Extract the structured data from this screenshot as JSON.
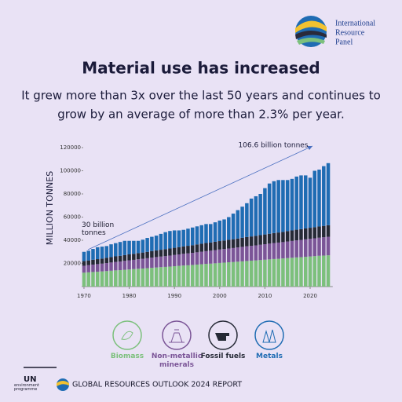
{
  "header": {
    "logo_text": [
      "International",
      "Resource",
      "Panel"
    ],
    "title": "Material use has increased",
    "subtitle": [
      "It grew more than 3x over the last 50 years and continues to",
      "grow by an average of more than 2.3% per year."
    ]
  },
  "chart_data": {
    "type": "stacked-bar",
    "y_label": "MILLION TONNES",
    "x": [
      1970,
      1971,
      1972,
      1973,
      1974,
      1975,
      1976,
      1977,
      1978,
      1979,
      1980,
      1981,
      1982,
      1983,
      1984,
      1985,
      1986,
      1987,
      1988,
      1989,
      1990,
      1991,
      1992,
      1993,
      1994,
      1995,
      1996,
      1997,
      1998,
      1999,
      2000,
      2001,
      2002,
      2003,
      2004,
      2005,
      2006,
      2007,
      2008,
      2009,
      2010,
      2011,
      2012,
      2013,
      2014,
      2015,
      2016,
      2017,
      2018,
      2019,
      2020,
      2021,
      2022,
      2023,
      2024
    ],
    "xlim": [
      1969,
      2025
    ],
    "xticks": [
      1970,
      1980,
      1990,
      2000,
      2010,
      2020
    ],
    "ylim": [
      0,
      120000
    ],
    "yticks": [
      20000,
      40000,
      60000,
      80000,
      100000,
      120000
    ],
    "series": [
      {
        "name": "Biomass",
        "color": "#7cc07c",
        "values": [
          12000,
          12300,
          12600,
          12800,
          13100,
          13400,
          13700,
          14000,
          14200,
          14500,
          14800,
          15100,
          15400,
          15600,
          15900,
          16200,
          16500,
          16800,
          17000,
          17300,
          17600,
          17900,
          18200,
          18400,
          18700,
          19000,
          19300,
          19600,
          19800,
          20100,
          20400,
          20700,
          21000,
          21200,
          21500,
          21800,
          22100,
          22400,
          22600,
          22900,
          23200,
          23500,
          23800,
          24000,
          24300,
          24600,
          24900,
          25200,
          25400,
          25700,
          26000,
          26300,
          26600,
          26800,
          27000
        ]
      },
      {
        "name": "Non-metallic minerals",
        "color": "#7b5597",
        "values": [
          6000,
          6200,
          6400,
          6600,
          6700,
          6900,
          7100,
          7300,
          7500,
          7700,
          7900,
          8000,
          8200,
          8400,
          8600,
          8800,
          9000,
          9100,
          9300,
          9500,
          9700,
          9900,
          10100,
          10300,
          10400,
          10600,
          10800,
          11000,
          11200,
          11400,
          11600,
          11700,
          11900,
          12100,
          12300,
          12500,
          12700,
          12800,
          13000,
          13200,
          13400,
          13600,
          13800,
          14000,
          14100,
          14300,
          14500,
          14700,
          14900,
          15100,
          15300,
          15400,
          15600,
          15800,
          16000
        ]
      },
      {
        "name": "Fossil fuels",
        "color": "#262a36",
        "values": [
          4000,
          4100,
          4200,
          4300,
          4400,
          4600,
          4700,
          4800,
          4900,
          5000,
          5100,
          5200,
          5300,
          5400,
          5500,
          5700,
          5800,
          5900,
          6000,
          6100,
          6200,
          6300,
          6400,
          6500,
          6600,
          6800,
          6900,
          7000,
          7100,
          7200,
          7300,
          7400,
          7500,
          7600,
          7700,
          7900,
          8000,
          8100,
          8200,
          8300,
          8400,
          8500,
          8600,
          8700,
          8800,
          9000,
          9100,
          9200,
          9300,
          9400,
          9500,
          9600,
          9700,
          9800,
          10000
        ]
      },
      {
        "name": "Metals",
        "color": "#1f6cb3",
        "values": [
          8000,
          8400,
          9300,
          10300,
          10300,
          10100,
          11000,
          11400,
          11900,
          12300,
          11700,
          11200,
          10600,
          11100,
          12000,
          12300,
          12700,
          13700,
          14700,
          15100,
          15000,
          14400,
          14300,
          14800,
          15300,
          15600,
          16000,
          16400,
          15900,
          16800,
          17700,
          18200,
          19600,
          22100,
          24500,
          26800,
          29200,
          32700,
          34200,
          35600,
          40000,
          43400,
          44800,
          45300,
          44800,
          44100,
          44500,
          45900,
          46400,
          45800,
          43200,
          48700,
          49100,
          51600,
          53600
        ]
      }
    ],
    "annotations": [
      "106.6 billion tonnes",
      "30 billion tonnes"
    ]
  },
  "footer": {
    "un": "UN",
    "un_sub": "environment programme",
    "report": "GLOBAL RESOURCES OUTLOOK 2024 REPORT"
  }
}
